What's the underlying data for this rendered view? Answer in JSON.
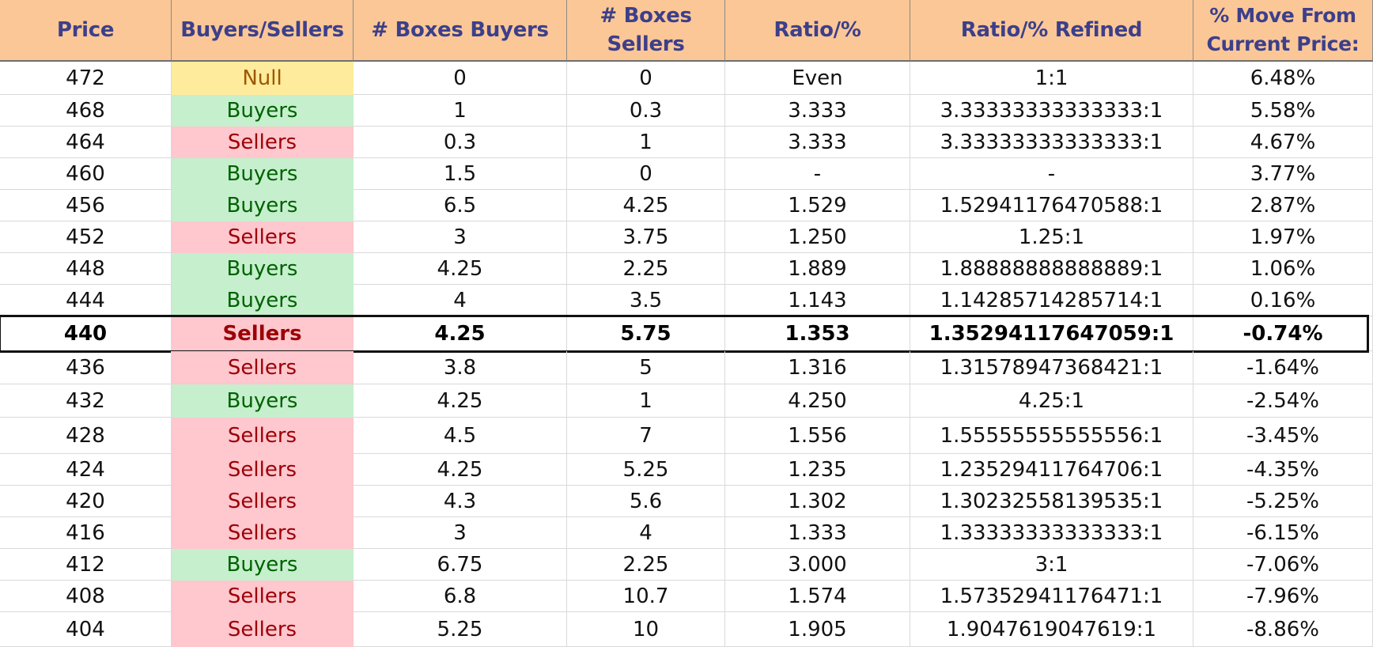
{
  "headers": [
    "Price",
    "Buyers/Sellers",
    "# Boxes Buyers",
    "# Boxes Sellers",
    "Ratio/%",
    "Ratio/% Refined",
    "% Move From Current Price:"
  ],
  "current_price_row": 8,
  "status_colors": {
    "Buyers": {
      "bg": "#c6efce",
      "fg": "#006100"
    },
    "Sellers": {
      "bg": "#ffc7ce",
      "fg": "#9c0006"
    },
    "Null": {
      "bg": "#ffeb9c",
      "fg": "#9c5700"
    }
  },
  "rows": [
    {
      "price": "472",
      "side": "Null",
      "buyers": "0",
      "sellers": "0",
      "ratio": "Even",
      "refined": "1:1",
      "move": "6.48%"
    },
    {
      "price": "468",
      "side": "Buyers",
      "buyers": "1",
      "sellers": "0.3",
      "ratio": "3.333",
      "refined": "3.33333333333333:1",
      "move": "5.58%"
    },
    {
      "price": "464",
      "side": "Sellers",
      "buyers": "0.3",
      "sellers": "1",
      "ratio": "3.333",
      "refined": "3.33333333333333:1",
      "move": "4.67%"
    },
    {
      "price": "460",
      "side": "Buyers",
      "buyers": "1.5",
      "sellers": "0",
      "ratio": "-",
      "refined": "-",
      "move": "3.77%"
    },
    {
      "price": "456",
      "side": "Buyers",
      "buyers": "6.5",
      "sellers": "4.25",
      "ratio": "1.529",
      "refined": "1.52941176470588:1",
      "move": "2.87%"
    },
    {
      "price": "452",
      "side": "Sellers",
      "buyers": "3",
      "sellers": "3.75",
      "ratio": "1.250",
      "refined": "1.25:1",
      "move": "1.97%"
    },
    {
      "price": "448",
      "side": "Buyers",
      "buyers": "4.25",
      "sellers": "2.25",
      "ratio": "1.889",
      "refined": "1.88888888888889:1",
      "move": "1.06%"
    },
    {
      "price": "444",
      "side": "Buyers",
      "buyers": "4",
      "sellers": "3.5",
      "ratio": "1.143",
      "refined": "1.14285714285714:1",
      "move": "0.16%"
    },
    {
      "price": "440",
      "side": "Sellers",
      "buyers": "4.25",
      "sellers": "5.75",
      "ratio": "1.353",
      "refined": "1.35294117647059:1",
      "move": "-0.74%"
    },
    {
      "price": "436",
      "side": "Sellers",
      "buyers": "3.8",
      "sellers": "5",
      "ratio": "1.316",
      "refined": "1.31578947368421:1",
      "move": "-1.64%"
    },
    {
      "price": "432",
      "side": "Buyers",
      "buyers": "4.25",
      "sellers": "1",
      "ratio": "4.250",
      "refined": "4.25:1",
      "move": "-2.54%"
    },
    {
      "price": "428",
      "side": "Sellers",
      "buyers": "4.5",
      "sellers": "7",
      "ratio": "1.556",
      "refined": "1.55555555555556:1",
      "move": "-3.45%"
    },
    {
      "price": "424",
      "side": "Sellers",
      "buyers": "4.25",
      "sellers": "5.25",
      "ratio": "1.235",
      "refined": "1.23529411764706:1",
      "move": "-4.35%"
    },
    {
      "price": "420",
      "side": "Sellers",
      "buyers": "4.3",
      "sellers": "5.6",
      "ratio": "1.302",
      "refined": "1.30232558139535:1",
      "move": "-5.25%"
    },
    {
      "price": "416",
      "side": "Sellers",
      "buyers": "3",
      "sellers": "4",
      "ratio": "1.333",
      "refined": "1.33333333333333:1",
      "move": "-6.15%"
    },
    {
      "price": "412",
      "side": "Buyers",
      "buyers": "6.75",
      "sellers": "2.25",
      "ratio": "3.000",
      "refined": "3:1",
      "move": "-7.06%"
    },
    {
      "price": "408",
      "side": "Sellers",
      "buyers": "6.8",
      "sellers": "10.7",
      "ratio": "1.574",
      "refined": "1.57352941176471:1",
      "move": "-7.96%"
    },
    {
      "price": "404",
      "side": "Sellers",
      "buyers": "5.25",
      "sellers": "10",
      "ratio": "1.905",
      "refined": "1.9047619047619:1",
      "move": "-8.86%"
    }
  ]
}
